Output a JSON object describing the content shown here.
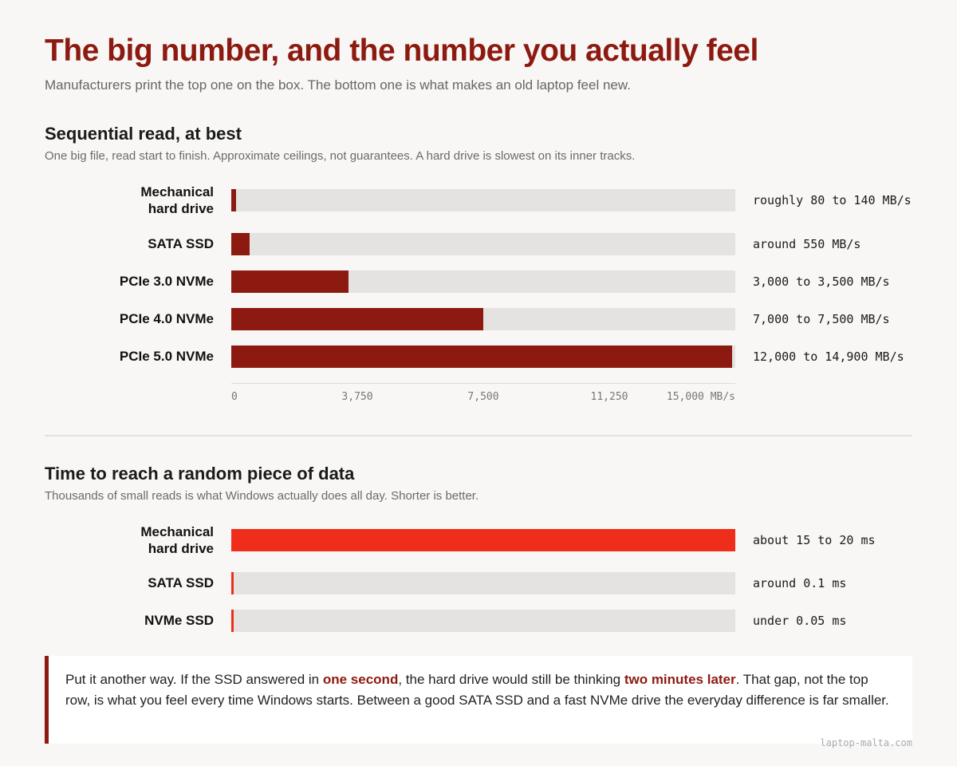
{
  "header": {
    "title": "The big number, and the number you actually feel",
    "subtitle": "Manufacturers print the top one on the box. The bottom one is what makes an old laptop feel new."
  },
  "colors": {
    "accent": "#8d1a10",
    "seq_bar": "#8d1a10",
    "latency_bar": "#ef2d1b",
    "track": "#e4e3e2",
    "background": "#f8f7f5"
  },
  "chart_data": [
    {
      "type": "bar",
      "orientation": "horizontal",
      "title": "Sequential read, at best",
      "subtitle": "One big file, read start to finish. Approximate ceilings, not guarantees. A hard drive is slowest on its inner tracks.",
      "categories": [
        "Mechanical hard drive",
        "SATA SSD",
        "PCIe 3.0 NVMe",
        "PCIe 4.0 NVMe",
        "PCIe 5.0 NVMe"
      ],
      "values": [
        140,
        550,
        3500,
        7500,
        14900
      ],
      "value_labels": [
        "roughly 80 to 140 MB/s",
        "around 550 MB/s",
        "3,000 to 3,500 MB/s",
        "7,000 to 7,500 MB/s",
        "12,000 to 14,900 MB/s"
      ],
      "xlim": [
        0,
        15000
      ],
      "ticks": [
        "0",
        "3,750",
        "7,500",
        "11,250",
        "15,000 MB/s"
      ],
      "grid": false
    },
    {
      "type": "bar",
      "orientation": "horizontal",
      "title": "Time to reach a random piece of data",
      "subtitle": "Thousands of small reads is what Windows actually does all day. Shorter is better.",
      "categories": [
        "Mechanical hard drive",
        "SATA SSD",
        "NVMe SSD"
      ],
      "values": [
        20,
        0.1,
        0.05
      ],
      "value_labels": [
        "about 15 to 20 ms",
        "around 0.1 ms",
        "under 0.05 ms"
      ],
      "xlim": [
        0,
        20
      ],
      "grid": false
    }
  ],
  "callout": {
    "p1": "Put it another way. If the SSD answered in ",
    "h1": "one second",
    "p2": ", the hard drive would still be thinking ",
    "h2": "two minutes later",
    "p3": ". That gap, not the top row, is what you feel every time Windows starts. Between a good SATA SSD and a fast NVMe drive the everyday difference is far smaller."
  },
  "footer": "laptop-malta.com"
}
